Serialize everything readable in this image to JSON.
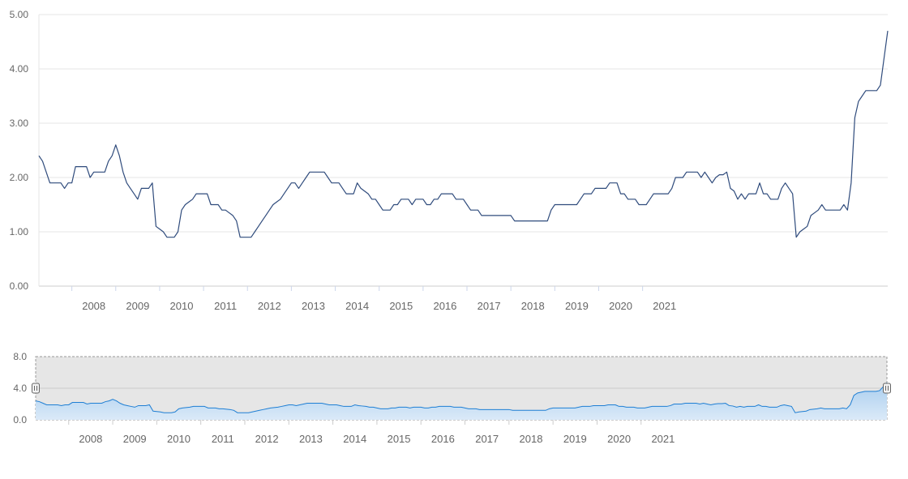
{
  "chart_data": {
    "type": "line",
    "title": "",
    "xlabel": "",
    "ylabel": "",
    "x_start": "2007-04",
    "x_range": [
      "2007-04",
      "2021-12"
    ],
    "x_tick_labels": [
      "2008",
      "2009",
      "2010",
      "2011",
      "2012",
      "2013",
      "2014",
      "2015",
      "2016",
      "2017",
      "2018",
      "2019",
      "2020",
      "2021"
    ],
    "ylim": [
      0,
      5
    ],
    "y_tick_labels": [
      "0.00",
      "1.00",
      "2.00",
      "3.00",
      "4.00",
      "5.00"
    ],
    "grid": true,
    "legend": "none",
    "series_color": "#2f4b7c",
    "values": [
      2.4,
      2.3,
      2.1,
      1.9,
      1.9,
      1.9,
      1.9,
      1.8,
      1.9,
      1.9,
      2.2,
      2.2,
      2.2,
      2.2,
      2.0,
      2.1,
      2.1,
      2.1,
      2.1,
      2.3,
      2.4,
      2.6,
      2.4,
      2.1,
      1.9,
      1.8,
      1.7,
      1.6,
      1.8,
      1.8,
      1.8,
      1.9,
      1.1,
      1.05,
      1.0,
      0.9,
      0.9,
      0.9,
      1.0,
      1.4,
      1.5,
      1.55,
      1.6,
      1.7,
      1.7,
      1.7,
      1.7,
      1.5,
      1.5,
      1.5,
      1.4,
      1.4,
      1.35,
      1.3,
      1.2,
      0.9,
      0.9,
      0.9,
      0.9,
      1.0,
      1.1,
      1.2,
      1.3,
      1.4,
      1.5,
      1.55,
      1.6,
      1.7,
      1.8,
      1.9,
      1.9,
      1.8,
      1.9,
      2.0,
      2.1,
      2.1,
      2.1,
      2.1,
      2.1,
      2.0,
      1.9,
      1.9,
      1.9,
      1.8,
      1.7,
      1.7,
      1.7,
      1.9,
      1.8,
      1.75,
      1.7,
      1.6,
      1.6,
      1.5,
      1.4,
      1.4,
      1.4,
      1.5,
      1.5,
      1.6,
      1.6,
      1.6,
      1.5,
      1.6,
      1.6,
      1.6,
      1.5,
      1.5,
      1.6,
      1.6,
      1.7,
      1.7,
      1.7,
      1.7,
      1.6,
      1.6,
      1.6,
      1.5,
      1.4,
      1.4,
      1.4,
      1.3,
      1.3,
      1.3,
      1.3,
      1.3,
      1.3,
      1.3,
      1.3,
      1.3,
      1.2,
      1.2,
      1.2,
      1.2,
      1.2,
      1.2,
      1.2,
      1.2,
      1.2,
      1.2,
      1.4,
      1.5,
      1.5,
      1.5,
      1.5,
      1.5,
      1.5,
      1.5,
      1.6,
      1.7,
      1.7,
      1.7,
      1.8,
      1.8,
      1.8,
      1.8,
      1.9,
      1.9,
      1.9,
      1.7,
      1.7,
      1.6,
      1.6,
      1.6,
      1.5,
      1.5,
      1.5,
      1.6,
      1.7,
      1.7,
      1.7,
      1.7,
      1.7,
      1.8,
      2.0,
      2.0,
      2.0,
      2.1,
      2.1,
      2.1,
      2.1,
      2.0,
      2.1,
      2.0,
      1.9,
      2.0,
      2.05,
      2.05,
      2.1,
      1.8,
      1.75,
      1.6,
      1.7,
      1.6,
      1.7,
      1.7,
      1.7,
      1.9,
      1.7,
      1.7,
      1.6,
      1.6,
      1.6,
      1.8,
      1.9,
      1.8,
      1.7,
      0.9,
      1.0,
      1.05,
      1.1,
      1.3,
      1.35,
      1.4,
      1.5,
      1.4,
      1.4,
      1.4,
      1.4,
      1.4,
      1.5,
      1.4,
      1.9,
      3.1,
      3.4,
      3.5,
      3.6,
      3.6,
      3.6,
      3.6,
      3.7,
      4.2,
      4.7
    ]
  },
  "navigator": {
    "ylim": [
      0,
      8
    ],
    "y_tick_labels": [
      "0.0",
      "4.0",
      "8.0"
    ],
    "x_tick_labels": [
      "2008",
      "2009",
      "2010",
      "2011",
      "2012",
      "2013",
      "2014",
      "2015",
      "2016",
      "2017",
      "2018",
      "2019",
      "2020",
      "2021"
    ],
    "line_color": "#1f7fd4",
    "fill_top_color": "#a9cdee",
    "fill_bottom_color": "#dbeaf8",
    "mask_color": "#e6e6e6"
  }
}
